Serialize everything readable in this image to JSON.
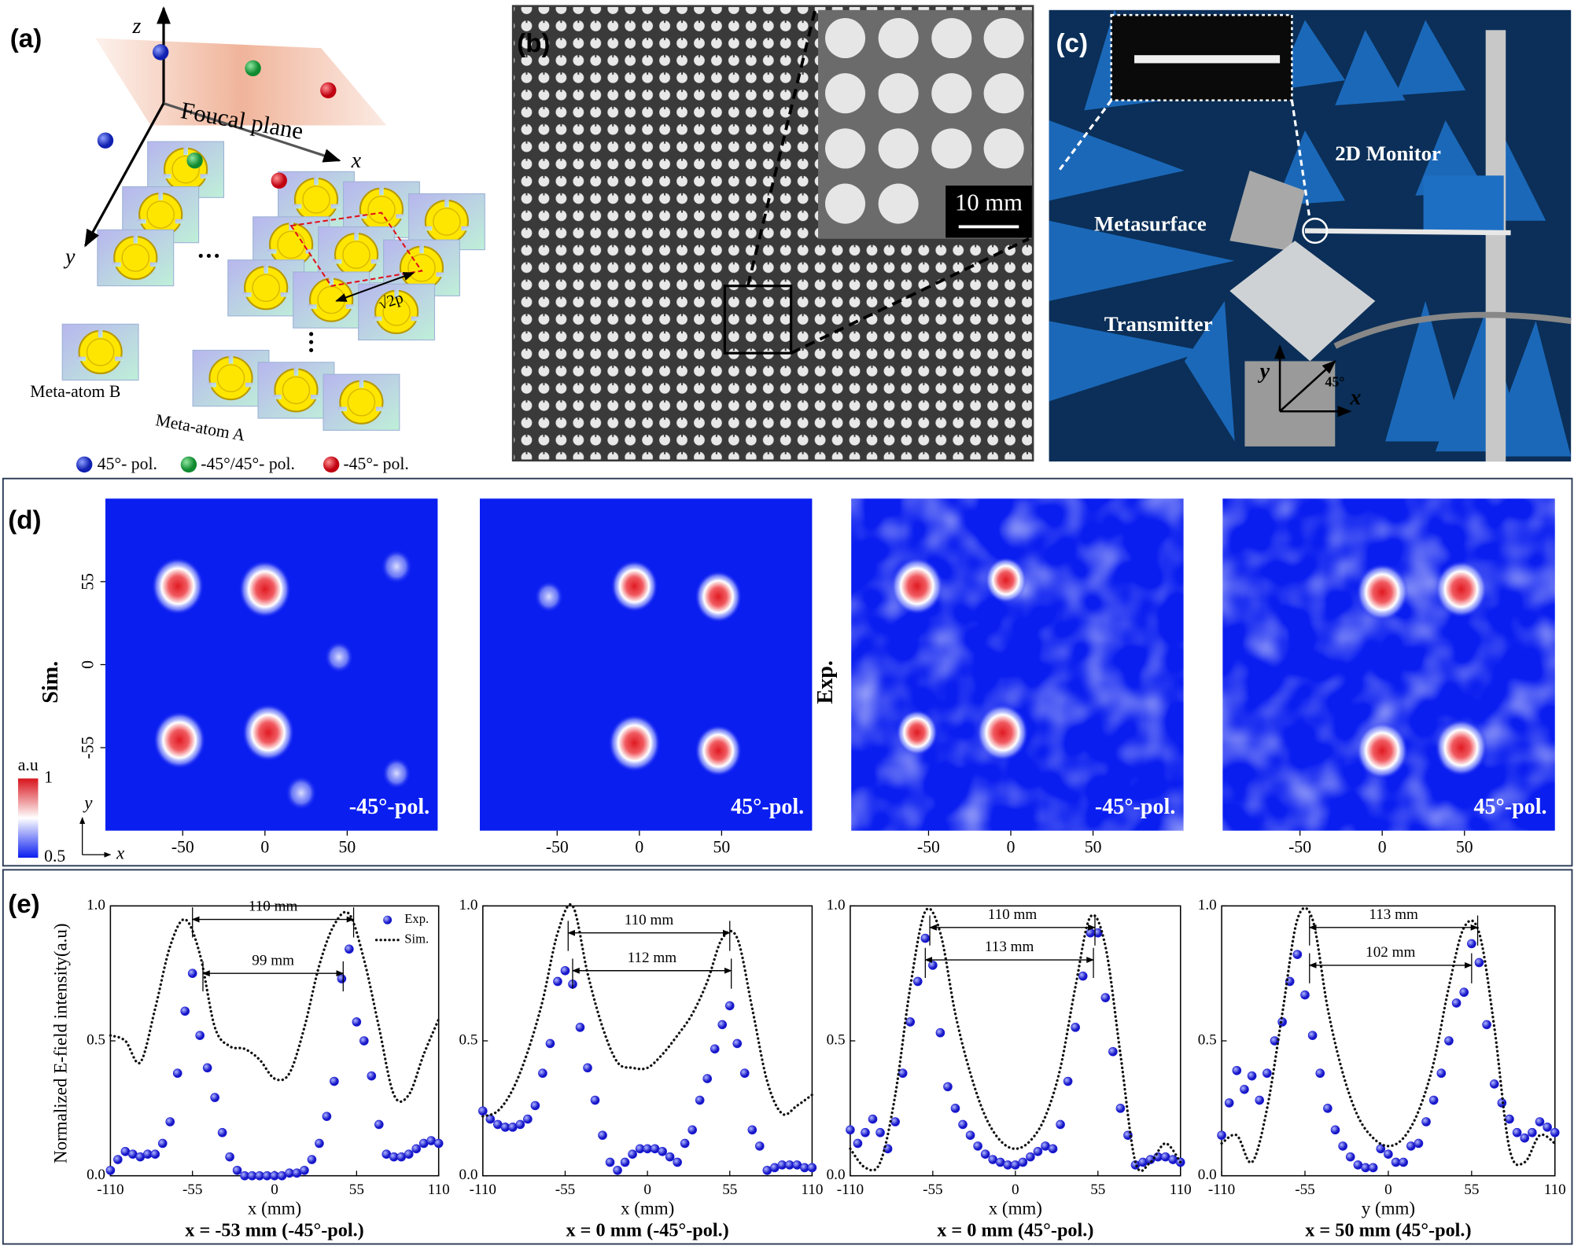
{
  "panels": {
    "a": {
      "label": "(a)",
      "axis_z": "z",
      "axis_x": "x",
      "axis_y": "y",
      "plane": "Foucal plane",
      "period": "√2p",
      "atom_b": "Meta-atom B",
      "atom_a": "Meta-atom A",
      "legend": [
        "45°- pol.",
        "-45°/45°- pol.",
        "-45°- pol."
      ]
    },
    "b": {
      "label": "(b)",
      "scale": "10 mm"
    },
    "c": {
      "label": "(c)",
      "monitor": "2D Monitor",
      "metasurface": "Metasurface",
      "transmitter": "Transmitter",
      "axis_y": "y",
      "axis_x": "x",
      "angle": "45°"
    },
    "d": {
      "label": "(d)",
      "row_labels": [
        "Sim.",
        "Exp."
      ],
      "xlim": [
        -97,
        105
      ],
      "ylim": [
        -110,
        110
      ],
      "yticks": [
        55,
        0,
        -55
      ],
      "colorbar": {
        "title": "a.u",
        "lim": [
          0.5,
          1
        ],
        "ticks": [
          1,
          0.5
        ]
      },
      "axis_y": "y",
      "axis_x": "x",
      "maps": [
        {
          "label": "-45°-pol.",
          "xticks": [
            -50,
            0,
            50
          ],
          "noise": false,
          "spots": [
            {
              "x": -53,
              "y": 52,
              "intensity": 1
            },
            {
              "x": 0,
              "y": 50,
              "intensity": 1
            },
            {
              "x": -52,
              "y": -50,
              "intensity": 1
            },
            {
              "x": 2,
              "y": -45,
              "intensity": 1
            },
            {
              "x": 80,
              "y": 65,
              "intensity": 0.6
            },
            {
              "x": 45,
              "y": 5,
              "intensity": 0.55
            },
            {
              "x": 22,
              "y": -85,
              "intensity": 0.6
            },
            {
              "x": 80,
              "y": -72,
              "intensity": 0.55
            }
          ]
        },
        {
          "label": "45°-pol.",
          "xticks": [
            -50,
            0,
            50
          ],
          "noise": false,
          "spots": [
            {
              "x": -55,
              "y": 45,
              "intensity": 0.55
            },
            {
              "x": -3,
              "y": 52,
              "intensity": 0.9
            },
            {
              "x": 48,
              "y": 45,
              "intensity": 0.9
            },
            {
              "x": -3,
              "y": -52,
              "intensity": 1
            },
            {
              "x": 48,
              "y": -57,
              "intensity": 0.9
            }
          ]
        },
        {
          "label": "-45°-pol.",
          "xticks": [
            -50,
            0,
            50
          ],
          "noise": true,
          "spots": [
            {
              "x": -57,
              "y": 52,
              "intensity": 1
            },
            {
              "x": -3,
              "y": 56,
              "intensity": 0.8
            },
            {
              "x": -57,
              "y": -45,
              "intensity": 0.8
            },
            {
              "x": -5,
              "y": -45,
              "intensity": 1
            }
          ]
        },
        {
          "label": "45°-pol.",
          "xticks": [
            -50,
            0,
            50
          ],
          "noise": true,
          "spots": [
            {
              "x": 0,
              "y": 48,
              "intensity": 1
            },
            {
              "x": 48,
              "y": 50,
              "intensity": 1
            },
            {
              "x": 0,
              "y": -57,
              "intensity": 1
            },
            {
              "x": 48,
              "y": -55,
              "intensity": 1
            }
          ]
        }
      ]
    },
    "e": {
      "label": "(e)",
      "ylabel": "Normalized E-field intensity(a.u)"
    }
  },
  "chart_data": [
    {
      "type": "line",
      "xlabel": "x (mm)",
      "caption": "x = -53 mm (-45°-pol.)",
      "xlim": [
        -110,
        110
      ],
      "ylim": [
        0,
        1
      ],
      "xticks": [
        -110,
        -55,
        0,
        55,
        110
      ],
      "yticks": [
        {
          "value": 0,
          "label": "0.0"
        },
        0.5,
        {
          "value": 1,
          "label": "1.0"
        }
      ],
      "series": [
        {
          "name": "Exp.",
          "color": "#1f1fd6",
          "style": "markers",
          "x": [
            -110,
            -105,
            -100,
            -95,
            -90,
            -85,
            -80,
            -75,
            -70,
            -65,
            -60,
            -55,
            -50,
            -45,
            -40,
            -35,
            -30,
            -25,
            -20,
            -15,
            -10,
            -5,
            0,
            5,
            10,
            15,
            20,
            25,
            30,
            35,
            40,
            45,
            50,
            55,
            60,
            65,
            70,
            75,
            80,
            85,
            90,
            95,
            100,
            105,
            110
          ],
          "values": [
            0.02,
            0.06,
            0.09,
            0.08,
            0.07,
            0.08,
            0.08,
            0.12,
            0.2,
            0.38,
            0.61,
            0.75,
            0.52,
            0.4,
            0.29,
            0.16,
            0.07,
            0.02,
            0,
            0,
            0,
            0,
            0,
            0,
            0.01,
            0.01,
            0.02,
            0.06,
            0.12,
            0.22,
            0.35,
            0.73,
            0.84,
            0.57,
            0.5,
            0.37,
            0.19,
            0.08,
            0.07,
            0.07,
            0.08,
            0.1,
            0.12,
            0.13,
            0.12
          ]
        },
        {
          "name": "Sim.",
          "color": "#111111",
          "style": "dotted",
          "x": [
            -110,
            -100,
            -90,
            -80,
            -70,
            -60,
            -50,
            -40,
            -30,
            -20,
            -10,
            0,
            10,
            20,
            30,
            40,
            50,
            60,
            70,
            80,
            90,
            100,
            110
          ],
          "values": [
            0.52,
            0.5,
            0.42,
            0.62,
            0.85,
            0.95,
            0.82,
            0.55,
            0.48,
            0.47,
            0.43,
            0.36,
            0.38,
            0.55,
            0.78,
            0.93,
            0.97,
            0.8,
            0.55,
            0.3,
            0.3,
            0.45,
            0.58
          ]
        }
      ],
      "annotations": [
        {
          "text": "110 mm",
          "x1": -55,
          "x2": 53,
          "y": 0.95
        },
        {
          "text": "99 mm",
          "x1": -48,
          "x2": 46,
          "y": 0.75
        }
      ]
    },
    {
      "type": "line",
      "xlabel": "x (mm)",
      "caption": "x = 0 mm (-45°-pol.)",
      "xlim": [
        -110,
        110
      ],
      "ylim": [
        0,
        1
      ],
      "xticks": [
        -110,
        -55,
        0,
        55,
        110
      ],
      "yticks": [
        {
          "value": 0,
          "label": "0.0"
        },
        0.5,
        {
          "value": 1,
          "label": "1.0"
        }
      ],
      "series": [
        {
          "color": "#1f1fd6",
          "style": "markers",
          "x": [
            -110,
            -105,
            -100,
            -95,
            -90,
            -85,
            -80,
            -75,
            -70,
            -65,
            -60,
            -55,
            -50,
            -45,
            -40,
            -35,
            -30,
            -25,
            -20,
            -15,
            -10,
            -5,
            0,
            5,
            10,
            15,
            20,
            25,
            30,
            35,
            40,
            45,
            50,
            55,
            60,
            65,
            70,
            75,
            80,
            85,
            90,
            95,
            100,
            105,
            110
          ],
          "values": [
            0.24,
            0.21,
            0.19,
            0.18,
            0.18,
            0.19,
            0.21,
            0.26,
            0.38,
            0.49,
            0.72,
            0.76,
            0.71,
            0.55,
            0.4,
            0.28,
            0.15,
            0.05,
            0.02,
            0.05,
            0.08,
            0.1,
            0.1,
            0.1,
            0.09,
            0.07,
            0.05,
            0.12,
            0.17,
            0.28,
            0.36,
            0.47,
            0.56,
            0.63,
            0.49,
            0.38,
            0.17,
            0.11,
            0.02,
            0.03,
            0.04,
            0.04,
            0.04,
            0.03,
            0.03
          ]
        },
        {
          "color": "#111111",
          "style": "dotted",
          "x": [
            -110,
            -100,
            -90,
            -80,
            -70,
            -60,
            -50,
            -40,
            -30,
            -20,
            -10,
            0,
            10,
            20,
            30,
            40,
            50,
            60,
            70,
            80,
            90,
            100,
            110
          ],
          "values": [
            0.22,
            0.24,
            0.32,
            0.46,
            0.65,
            0.9,
            1.0,
            0.75,
            0.55,
            0.42,
            0.4,
            0.4,
            0.45,
            0.52,
            0.6,
            0.72,
            0.88,
            0.88,
            0.62,
            0.35,
            0.23,
            0.26,
            0.3
          ]
        }
      ],
      "annotations": [
        {
          "text": "110 mm",
          "x1": -53,
          "x2": 55,
          "y": 0.9
        },
        {
          "text": "112 mm",
          "x1": -50,
          "x2": 56,
          "y": 0.76
        }
      ]
    },
    {
      "type": "line",
      "xlabel": "x (mm)",
      "caption": "x = 0 mm (45°-pol.)",
      "xlim": [
        -110,
        110
      ],
      "ylim": [
        0,
        1
      ],
      "xticks": [
        -110,
        -55,
        0,
        55,
        110
      ],
      "yticks": [
        {
          "value": 0,
          "label": "0.0"
        },
        0.5,
        {
          "value": 1,
          "label": "1.0"
        }
      ],
      "series": [
        {
          "color": "#1f1fd6",
          "style": "markers",
          "x": [
            -110,
            -105,
            -100,
            -95,
            -90,
            -85,
            -80,
            -75,
            -70,
            -65,
            -60,
            -55,
            -50,
            -45,
            -40,
            -35,
            -30,
            -25,
            -20,
            -15,
            -10,
            -5,
            0,
            5,
            10,
            15,
            20,
            25,
            30,
            35,
            40,
            45,
            50,
            55,
            60,
            65,
            70,
            75,
            80,
            85,
            90,
            95,
            100,
            105,
            110
          ],
          "values": [
            0.17,
            0.12,
            0.16,
            0.21,
            0.16,
            0.1,
            0.2,
            0.38,
            0.57,
            0.72,
            0.88,
            0.78,
            0.53,
            0.33,
            0.25,
            0.19,
            0.15,
            0.11,
            0.08,
            0.06,
            0.05,
            0.04,
            0.04,
            0.05,
            0.07,
            0.09,
            0.11,
            0.1,
            0.19,
            0.35,
            0.55,
            0.74,
            0.9,
            0.9,
            0.66,
            0.46,
            0.25,
            0.15,
            0.04,
            0.05,
            0.06,
            0.07,
            0.07,
            0.06,
            0.05
          ]
        },
        {
          "color": "#111111",
          "style": "dotted",
          "x": [
            -110,
            -100,
            -90,
            -80,
            -70,
            -60,
            -50,
            -40,
            -30,
            -20,
            -10,
            0,
            10,
            20,
            30,
            40,
            50,
            60,
            70,
            80,
            90,
            100,
            110
          ],
          "values": [
            0.1,
            0.03,
            0.05,
            0.3,
            0.7,
            0.98,
            0.9,
            0.6,
            0.38,
            0.22,
            0.13,
            0.1,
            0.13,
            0.22,
            0.4,
            0.7,
            0.96,
            0.85,
            0.45,
            0.05,
            0.05,
            0.12,
            0.05
          ]
        }
      ],
      "annotations": [
        {
          "text": "110 mm",
          "x1": -57,
          "x2": 53,
          "y": 0.92
        },
        {
          "text": "113 mm",
          "x1": -60,
          "x2": 52,
          "y": 0.8
        }
      ]
    },
    {
      "type": "line",
      "xlabel": "y (mm)",
      "caption": "x = 50 mm (45°-pol.)",
      "xlim": [
        -110,
        110
      ],
      "ylim": [
        0,
        1
      ],
      "xticks": [
        -110,
        -55,
        0,
        55,
        110
      ],
      "yticks": [
        {
          "value": 0,
          "label": "0.0"
        },
        0.5,
        {
          "value": 1,
          "label": "1.0"
        }
      ],
      "series": [
        {
          "color": "#1f1fd6",
          "style": "markers",
          "x": [
            -110,
            -105,
            -100,
            -95,
            -90,
            -85,
            -80,
            -75,
            -70,
            -65,
            -60,
            -55,
            -50,
            -45,
            -40,
            -35,
            -30,
            -25,
            -20,
            -15,
            -10,
            -5,
            0,
            5,
            10,
            15,
            20,
            25,
            30,
            35,
            40,
            45,
            50,
            55,
            60,
            65,
            70,
            75,
            80,
            85,
            90,
            95,
            100,
            105,
            110
          ],
          "values": [
            0.15,
            0.27,
            0.39,
            0.32,
            0.37,
            0.28,
            0.38,
            0.5,
            0.57,
            0.72,
            0.82,
            0.67,
            0.52,
            0.38,
            0.25,
            0.17,
            0.11,
            0.07,
            0.04,
            0.03,
            0.03,
            0.1,
            0.08,
            0.05,
            0.05,
            0.11,
            0.12,
            0.2,
            0.28,
            0.38,
            0.5,
            0.64,
            0.68,
            0.86,
            0.79,
            0.56,
            0.34,
            0.27,
            0.21,
            0.16,
            0.14,
            0.16,
            0.2,
            0.18,
            0.16
          ]
        },
        {
          "color": "#111111",
          "style": "dotted",
          "x": [
            -110,
            -100,
            -90,
            -80,
            -70,
            -60,
            -50,
            -40,
            -30,
            -20,
            -10,
            0,
            10,
            20,
            30,
            40,
            50,
            60,
            70,
            80,
            90,
            100,
            110
          ],
          "values": [
            0.12,
            0.15,
            0.05,
            0.25,
            0.6,
            0.95,
            0.95,
            0.62,
            0.38,
            0.22,
            0.14,
            0.11,
            0.14,
            0.24,
            0.42,
            0.7,
            0.92,
            0.9,
            0.55,
            0.1,
            0.05,
            0.15,
            0.12
          ]
        }
      ],
      "annotations": [
        {
          "text": "113 mm",
          "x1": -52,
          "x2": 59,
          "y": 0.92
        },
        {
          "text": "102 mm",
          "x1": -52,
          "x2": 55,
          "y": 0.78
        }
      ]
    }
  ]
}
